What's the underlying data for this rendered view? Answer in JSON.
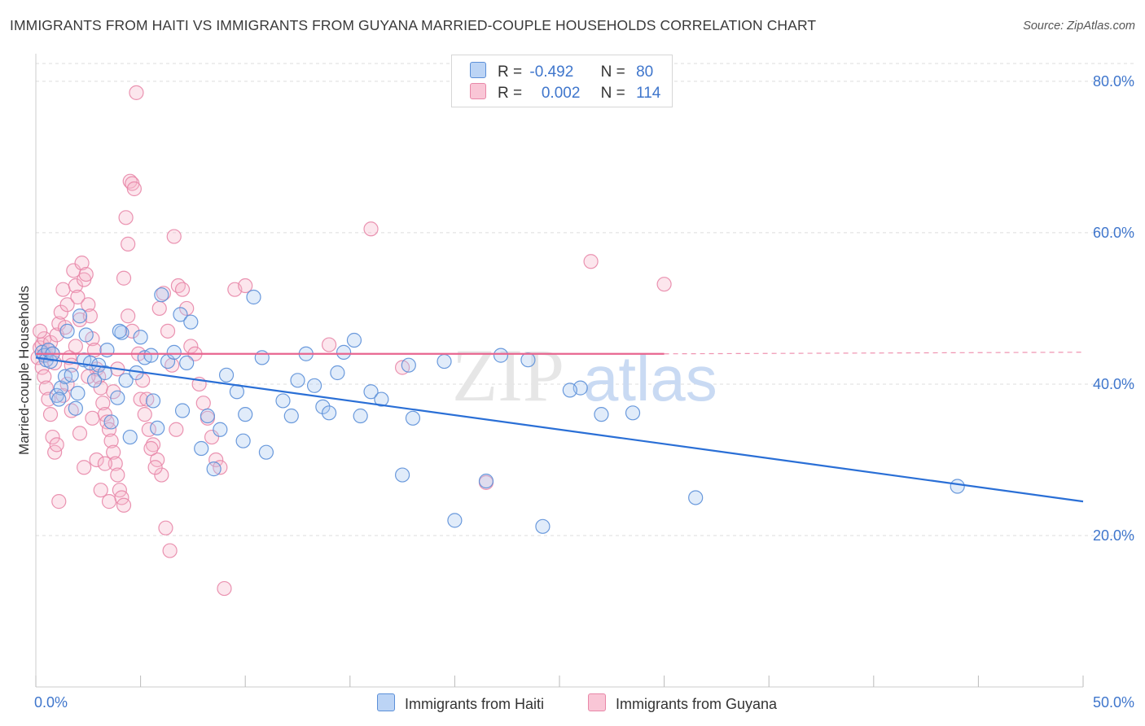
{
  "header": {
    "title": "IMMIGRANTS FROM HAITI VS IMMIGRANTS FROM GUYANA MARRIED-COUPLE HOUSEHOLDS CORRELATION CHART",
    "source": "Source: ZipAtlas.com"
  },
  "watermark": {
    "zip": "ZIP",
    "atlas": "atlas"
  },
  "legend": {
    "series1": {
      "r_label": "R =",
      "r_value": "-0.492",
      "n_label": "N =",
      "n_value": "80"
    },
    "series2": {
      "r_label": "R =",
      "r_value": "0.002",
      "n_label": "N =",
      "n_value": "114"
    }
  },
  "colors": {
    "haiti_fill": "#a9c8f0",
    "haiti_stroke": "#5b8fd8",
    "haiti_line": "#2a6fd6",
    "guyana_fill": "#f6b8cc",
    "guyana_stroke": "#e887a8",
    "guyana_line": "#e8658f",
    "tick_label": "#3f76cc",
    "grid": "#dddddd"
  },
  "chart_data": {
    "type": "scatter",
    "title": "IMMIGRANTS FROM HAITI VS IMMIGRANTS FROM GUYANA MARRIED-COUPLE HOUSEHOLDS CORRELATION CHART",
    "xlabel": "",
    "ylabel": "Married-couple Households",
    "xlim": [
      0,
      50
    ],
    "ylim": [
      0,
      83
    ],
    "x_tick_labels": [
      "0.0%",
      "50.0%"
    ],
    "y_ticks": [
      20,
      40,
      60,
      80
    ],
    "y_tick_labels": [
      "20.0%",
      "40.0%",
      "60.0%",
      "80.0%"
    ],
    "grid": true,
    "legend_position": "bottom-center",
    "series": [
      {
        "name": "Immigrants from Haiti",
        "r": -0.492,
        "n": 80,
        "trend": {
          "x": [
            0,
            50
          ],
          "y": [
            43.5,
            24.5
          ],
          "style": "solid"
        },
        "points": [
          [
            0.3,
            44.2
          ],
          [
            0.4,
            43.8
          ],
          [
            0.5,
            43.2
          ],
          [
            0.6,
            44.5
          ],
          [
            0.7,
            43.0
          ],
          [
            0.8,
            44.0
          ],
          [
            1.0,
            38.5
          ],
          [
            1.2,
            39.5
          ],
          [
            1.4,
            41.0
          ],
          [
            1.5,
            47.0
          ],
          [
            1.7,
            41.2
          ],
          [
            1.9,
            36.8
          ],
          [
            2.1,
            49.0
          ],
          [
            2.3,
            43.2
          ],
          [
            2.4,
            46.5
          ],
          [
            2.6,
            42.8
          ],
          [
            2.8,
            40.5
          ],
          [
            3.0,
            42.5
          ],
          [
            3.3,
            41.5
          ],
          [
            3.6,
            35.0
          ],
          [
            3.9,
            38.2
          ],
          [
            4.1,
            46.8
          ],
          [
            4.3,
            40.5
          ],
          [
            4.5,
            33.0
          ],
          [
            4.8,
            41.5
          ],
          [
            5.0,
            46.2
          ],
          [
            5.2,
            43.5
          ],
          [
            5.6,
            37.8
          ],
          [
            5.8,
            34.2
          ],
          [
            6.0,
            51.8
          ],
          [
            6.3,
            43.0
          ],
          [
            6.6,
            44.2
          ],
          [
            6.9,
            49.2
          ],
          [
            7.2,
            42.8
          ],
          [
            7.4,
            48.2
          ],
          [
            7.9,
            31.5
          ],
          [
            8.2,
            35.8
          ],
          [
            8.5,
            28.8
          ],
          [
            8.8,
            34.0
          ],
          [
            9.1,
            41.2
          ],
          [
            9.6,
            39.0
          ],
          [
            10.0,
            36.0
          ],
          [
            10.4,
            51.5
          ],
          [
            10.8,
            43.5
          ],
          [
            11.0,
            31.0
          ],
          [
            11.8,
            37.8
          ],
          [
            12.2,
            35.8
          ],
          [
            12.5,
            40.5
          ],
          [
            13.3,
            39.8
          ],
          [
            13.7,
            37.0
          ],
          [
            14.0,
            36.2
          ],
          [
            14.4,
            41.5
          ],
          [
            14.7,
            44.2
          ],
          [
            15.5,
            35.8
          ],
          [
            16.0,
            39.0
          ],
          [
            16.5,
            38.0
          ],
          [
            17.5,
            28.0
          ],
          [
            18.0,
            35.5
          ],
          [
            19.5,
            43.0
          ],
          [
            20.0,
            22.0
          ],
          [
            21.5,
            27.2
          ],
          [
            22.2,
            43.8
          ],
          [
            23.5,
            43.2
          ],
          [
            24.2,
            21.2
          ],
          [
            26.0,
            39.5
          ],
          [
            27.0,
            36.0
          ],
          [
            28.5,
            36.2
          ],
          [
            31.5,
            25.0
          ],
          [
            44.0,
            26.5
          ],
          [
            1.1,
            38.0
          ],
          [
            2.0,
            38.8
          ],
          [
            3.4,
            44.5
          ],
          [
            5.5,
            43.8
          ],
          [
            7.0,
            36.5
          ],
          [
            9.9,
            32.5
          ],
          [
            12.9,
            44.0
          ],
          [
            15.2,
            45.8
          ],
          [
            17.8,
            42.5
          ],
          [
            25.5,
            39.2
          ],
          [
            4.0,
            47.0
          ]
        ]
      },
      {
        "name": "Immigrants from Guyana",
        "r": 0.002,
        "n": 114,
        "trend": {
          "x": [
            0,
            30
          ],
          "y": [
            44.0,
            44.0
          ],
          "style": "solid",
          "extended_x": [
            30,
            50
          ],
          "extended_style": "dashed"
        },
        "points": [
          [
            0.1,
            43.5
          ],
          [
            0.2,
            44.8
          ],
          [
            0.3,
            45.2
          ],
          [
            0.4,
            46.0
          ],
          [
            0.5,
            43.8
          ],
          [
            0.6,
            44.5
          ],
          [
            0.7,
            45.5
          ],
          [
            0.8,
            44.0
          ],
          [
            0.9,
            42.8
          ],
          [
            1.0,
            46.5
          ],
          [
            1.1,
            48.0
          ],
          [
            1.2,
            49.5
          ],
          [
            1.3,
            52.5
          ],
          [
            1.4,
            47.5
          ],
          [
            1.5,
            50.5
          ],
          [
            1.6,
            43.5
          ],
          [
            1.7,
            42.5
          ],
          [
            1.8,
            55.0
          ],
          [
            1.9,
            53.0
          ],
          [
            2.0,
            51.5
          ],
          [
            2.1,
            48.5
          ],
          [
            2.2,
            56.0
          ],
          [
            2.3,
            53.8
          ],
          [
            2.4,
            54.5
          ],
          [
            2.5,
            50.5
          ],
          [
            2.6,
            49.0
          ],
          [
            2.7,
            46.0
          ],
          [
            2.8,
            44.5
          ],
          [
            2.9,
            42.0
          ],
          [
            3.0,
            41.0
          ],
          [
            3.1,
            39.5
          ],
          [
            3.2,
            37.5
          ],
          [
            3.3,
            36.0
          ],
          [
            3.4,
            35.0
          ],
          [
            3.5,
            34.0
          ],
          [
            3.6,
            32.5
          ],
          [
            3.7,
            31.0
          ],
          [
            3.8,
            29.5
          ],
          [
            3.9,
            28.0
          ],
          [
            4.0,
            26.0
          ],
          [
            4.1,
            25.0
          ],
          [
            4.2,
            24.0
          ],
          [
            4.3,
            62.0
          ],
          [
            4.4,
            58.5
          ],
          [
            4.5,
            66.8
          ],
          [
            4.6,
            66.5
          ],
          [
            4.7,
            65.8
          ],
          [
            4.8,
            78.5
          ],
          [
            5.0,
            38.0
          ],
          [
            5.2,
            36.0
          ],
          [
            5.4,
            34.0
          ],
          [
            5.6,
            32.0
          ],
          [
            5.8,
            30.0
          ],
          [
            6.0,
            28.0
          ],
          [
            6.2,
            21.0
          ],
          [
            6.4,
            18.0
          ],
          [
            6.6,
            59.5
          ],
          [
            6.8,
            53.0
          ],
          [
            7.0,
            52.5
          ],
          [
            7.2,
            50.0
          ],
          [
            7.4,
            45.0
          ],
          [
            7.6,
            44.0
          ],
          [
            7.8,
            40.0
          ],
          [
            8.0,
            37.5
          ],
          [
            8.2,
            35.5
          ],
          [
            8.4,
            33.0
          ],
          [
            8.6,
            30.0
          ],
          [
            8.8,
            29.0
          ],
          [
            9.0,
            13.0
          ],
          [
            9.5,
            52.5
          ],
          [
            10.0,
            53.0
          ],
          [
            16.0,
            60.5
          ],
          [
            14.0,
            45.2
          ],
          [
            17.5,
            42.2
          ],
          [
            21.5,
            27.0
          ],
          [
            26.5,
            56.2
          ],
          [
            30.0,
            53.2
          ],
          [
            0.2,
            47.0
          ],
          [
            0.3,
            42.2
          ],
          [
            0.4,
            41.0
          ],
          [
            0.5,
            39.5
          ],
          [
            0.6,
            38.0
          ],
          [
            0.7,
            36.0
          ],
          [
            0.8,
            33.0
          ],
          [
            0.9,
            31.0
          ],
          [
            1.0,
            32.0
          ],
          [
            1.1,
            24.5
          ],
          [
            1.3,
            38.5
          ],
          [
            1.5,
            40.0
          ],
          [
            1.7,
            36.5
          ],
          [
            1.9,
            45.0
          ],
          [
            2.1,
            33.5
          ],
          [
            2.3,
            29.0
          ],
          [
            2.5,
            41.0
          ],
          [
            2.7,
            35.5
          ],
          [
            2.9,
            30.0
          ],
          [
            3.1,
            26.0
          ],
          [
            3.3,
            29.5
          ],
          [
            3.5,
            24.5
          ],
          [
            3.7,
            39.0
          ],
          [
            3.9,
            42.0
          ],
          [
            4.2,
            54.0
          ],
          [
            4.4,
            49.0
          ],
          [
            4.6,
            47.0
          ],
          [
            4.9,
            44.0
          ],
          [
            5.1,
            40.5
          ],
          [
            5.3,
            38.0
          ],
          [
            5.5,
            31.5
          ],
          [
            5.7,
            29.0
          ],
          [
            5.9,
            50.0
          ],
          [
            6.1,
            52.0
          ],
          [
            6.3,
            47.0
          ],
          [
            6.5,
            42.5
          ],
          [
            6.7,
            34.0
          ]
        ]
      }
    ]
  }
}
